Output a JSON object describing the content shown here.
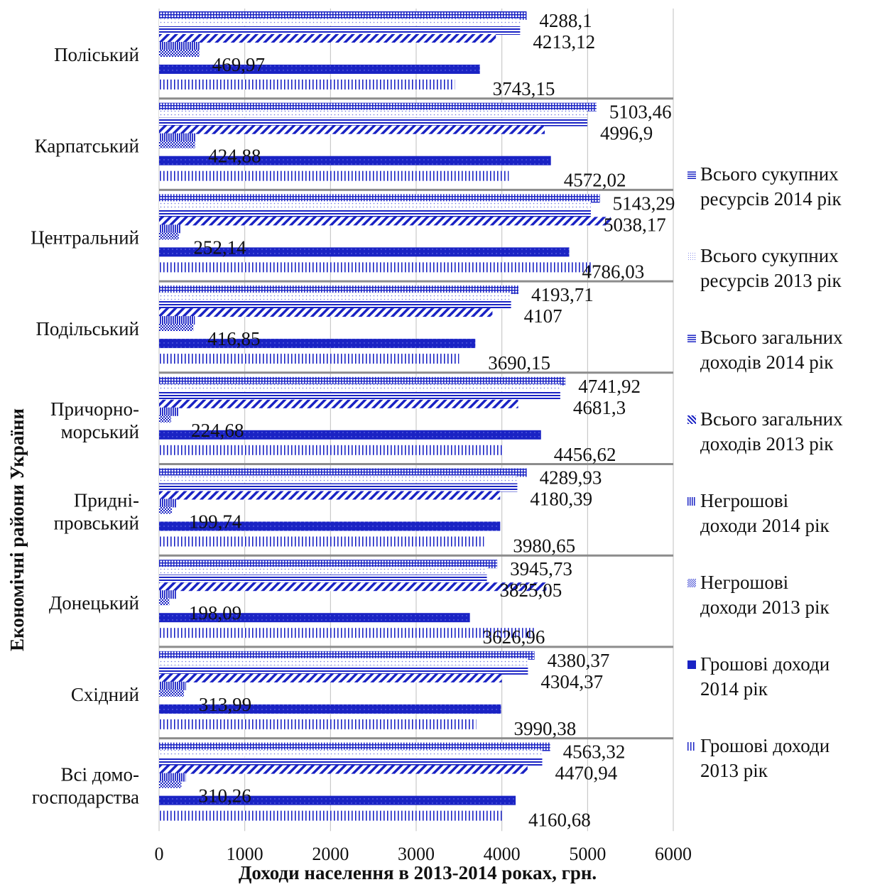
{
  "chart_data": {
    "type": "bar",
    "orientation": "horizontal",
    "xlabel": "Доходи населення в 2013-2014 роках, грн.",
    "ylabel": "Економічні райони України",
    "xlim": [
      0,
      6000
    ],
    "xticks": [
      "0",
      "1000",
      "2000",
      "3000",
      "4000",
      "5000",
      "6000"
    ],
    "grid": true,
    "legend_position": "right",
    "categories": [
      "Поліський",
      "Карпатський",
      "Центральний",
      "Подільський",
      "Причорно-морський",
      "Придні-провський",
      "Донецький",
      "Східний",
      "Всі домо-господарства"
    ],
    "category_lines": [
      [
        "Поліський"
      ],
      [
        "Карпатський"
      ],
      [
        "Центральний"
      ],
      [
        "Подільський"
      ],
      [
        "Причорно-",
        "морський"
      ],
      [
        "Придні-",
        "провський"
      ],
      [
        "Донецький"
      ],
      [
        "Східний"
      ],
      [
        "Всі домо-",
        "господарства"
      ]
    ],
    "series": [
      {
        "name": "Всього сукупних ресурсів 2014 рік",
        "pattern": "grid",
        "values": [
          4288.1,
          5103.46,
          5143.29,
          4193.71,
          4741.92,
          4289.93,
          3945.73,
          4380.37,
          4563.32
        ],
        "labels": [
          "4288,1",
          "5103,46",
          "5143,29",
          "4193,71",
          "4741,92",
          "4289,93",
          "3945,73",
          "4380,37",
          "4563,32"
        ]
      },
      {
        "name": "Всього сукупних ресурсів 2013 рік",
        "pattern": "dots",
        "values": [
          4213.12,
          4996.9,
          5038.17,
          4107,
          4681.3,
          4180.39,
          3825.05,
          4304.37,
          4470.94
        ],
        "labels": [
          "4213,12",
          "4996,9",
          "5038,17",
          "4107",
          "4681,3",
          "4180,39",
          "3825,05",
          "4304,37",
          "4470,94"
        ]
      },
      {
        "name": "Всього загальних доходів 2014 рік",
        "pattern": "hlines",
        "values": [
          4213.12,
          4996.9,
          5038.17,
          4107,
          4681.3,
          4180.39,
          3825.05,
          4304.37,
          4470.94
        ],
        "labels": []
      },
      {
        "name": "Всього загальних доходів 2013 рік",
        "pattern": "diag",
        "values": [
          3930,
          4500,
          5270,
          3890,
          4190,
          3980,
          4520,
          4000,
          4300
        ],
        "labels": []
      },
      {
        "name": "Негрошові доходи 2014 рік",
        "pattern": "vlines-dense",
        "values": [
          469.97,
          424.88,
          252.14,
          416.85,
          224.68,
          199.74,
          198.09,
          313.99,
          310.26
        ],
        "labels": [
          "469,97",
          "424,88",
          "252,14",
          "416,85",
          "224,68",
          "199,74",
          "198,09",
          "313,99",
          "310,26"
        ]
      },
      {
        "name": "Негрошові доходи 2013 рік",
        "pattern": "checker",
        "values": [
          470,
          420,
          230,
          400,
          140,
          150,
          120,
          290,
          260
        ],
        "labels": []
      },
      {
        "name": "Грошові доходи 2014 рік",
        "pattern": "solid",
        "values": [
          3743.15,
          4572.02,
          4786.03,
          3690.15,
          4456.62,
          3980.65,
          3626.96,
          3990.38,
          4160.68
        ],
        "labels": [
          "3743,15",
          "4572,02",
          "4786,03",
          "3690,15",
          "4456,62",
          "3980,65",
          "3626,96",
          "3990,38",
          "4160,68"
        ]
      },
      {
        "name": "Грошові доходи 2013 рік",
        "pattern": "vlines",
        "values": [
          3450,
          4080,
          5050,
          3500,
          4020,
          3790,
          4380,
          3700,
          4000
        ],
        "labels": []
      }
    ],
    "colors": {
      "primary": "#1a23c4",
      "grid": "#bfbfbf",
      "separator": "#8c8c8c"
    }
  },
  "legend": {
    "items": [
      {
        "lines": [
          "Всього сукупних",
          "ресурсів 2014 рік"
        ],
        "pattern": "grid"
      },
      {
        "lines": [
          "Всього сукупних",
          "ресурсів 2013 рік"
        ],
        "pattern": "dots"
      },
      {
        "lines": [
          "Всього загальних",
          "доходів 2014 рік"
        ],
        "pattern": "hlines"
      },
      {
        "lines": [
          "Всього загальних",
          "доходів 2013 рік"
        ],
        "pattern": "diag"
      },
      {
        "lines": [
          "Негрошові",
          "доходи 2014 рік"
        ],
        "pattern": "vlines-dense"
      },
      {
        "lines": [
          "Негрошові",
          "доходи 2013 рік"
        ],
        "pattern": "checker"
      },
      {
        "lines": [
          "Грошові доходи",
          "2014 рік"
        ],
        "pattern": "solid"
      },
      {
        "lines": [
          "Грошові доходи",
          "2013 рік"
        ],
        "pattern": "vlines"
      }
    ]
  }
}
